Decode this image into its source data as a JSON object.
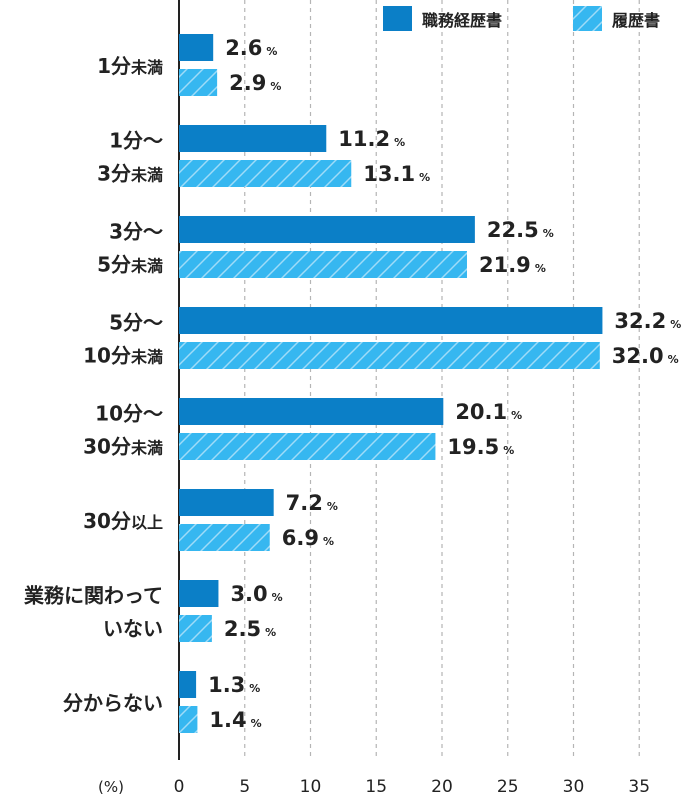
{
  "chart_data": {
    "type": "bar",
    "orientation": "horizontal",
    "categories": [
      [
        "1分",
        "未満"
      ],
      [
        "1分〜",
        "3分",
        "未満"
      ],
      [
        "3分〜",
        "5分",
        "未満"
      ],
      [
        "5分〜",
        "10分",
        "未満"
      ],
      [
        "10分〜",
        "30分",
        "未満"
      ],
      [
        "30分",
        "以上"
      ],
      [
        "業務に関わって",
        "いない"
      ],
      [
        "分からない"
      ]
    ],
    "series": [
      {
        "name": "職務経歴書",
        "values": [
          2.6,
          11.2,
          22.5,
          32.2,
          20.1,
          7.2,
          3.0,
          1.3
        ],
        "labels": [
          "2.6",
          "11.2",
          "22.5",
          "32.2",
          "20.1",
          "7.2",
          "3.0",
          "1.3"
        ]
      },
      {
        "name": "履歴書",
        "values": [
          2.9,
          13.1,
          21.9,
          32.0,
          19.5,
          6.9,
          2.5,
          1.4
        ],
        "labels": [
          "2.9",
          "13.1",
          "21.9",
          "32.0",
          "19.5",
          "6.9",
          "2.5",
          "1.4"
        ]
      }
    ],
    "unit": "%",
    "xlabel": "(%)",
    "xlim": [
      0,
      38
    ],
    "xticks": [
      0,
      5,
      10,
      15,
      20,
      25,
      30,
      35
    ],
    "grid": true,
    "legend": "top-right",
    "colors": {
      "series1": "#0b7fc7",
      "series2": "#36b7f0",
      "hatch": "#9fdcf8",
      "axis": "#222222",
      "grid": "#b5b5b5"
    }
  }
}
